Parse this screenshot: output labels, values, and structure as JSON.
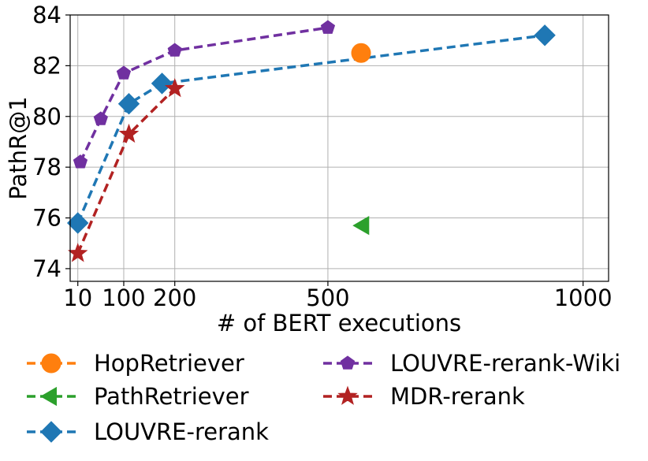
{
  "chart_data": {
    "type": "line",
    "title": "",
    "xlabel": "# of BERT executions",
    "ylabel": "PathR@1",
    "xlim": [
      -5,
      1050
    ],
    "ylim": [
      73.5,
      84
    ],
    "xticks": [
      10,
      100,
      200,
      500,
      1000
    ],
    "xtick_labels": [
      "10",
      "100",
      "200",
      "500",
      "1000"
    ],
    "yticks": [
      74,
      76,
      78,
      80,
      82,
      84
    ],
    "ytick_labels": [
      "74",
      "76",
      "78",
      "80",
      "82",
      "84"
    ],
    "grid": true,
    "legend_position": "below",
    "series": [
      {
        "name": "HopRetriever",
        "marker": "circle",
        "color": "#ff7f0e",
        "x": [
          565
        ],
        "y": [
          82.5
        ]
      },
      {
        "name": "PathRetriever",
        "marker": "triangle-left",
        "color": "#2ca02c",
        "x": [
          570
        ],
        "y": [
          75.7
        ]
      },
      {
        "name": "LOUVRE-rerank",
        "marker": "diamond",
        "color": "#1f77b4",
        "x": [
          10,
          110,
          175,
          925
        ],
        "y": [
          75.8,
          80.5,
          81.3,
          83.2
        ]
      },
      {
        "name": "LOUVRE-rerank-Wiki",
        "marker": "pentagon",
        "color": "#7030a0",
        "x": [
          15,
          55,
          100,
          200,
          500
        ],
        "y": [
          78.2,
          79.9,
          81.7,
          82.6,
          83.5
        ]
      },
      {
        "name": "MDR-rerank",
        "marker": "star",
        "color": "#b22222",
        "x": [
          10,
          110,
          200
        ],
        "y": [
          74.6,
          79.3,
          81.1
        ]
      }
    ]
  }
}
